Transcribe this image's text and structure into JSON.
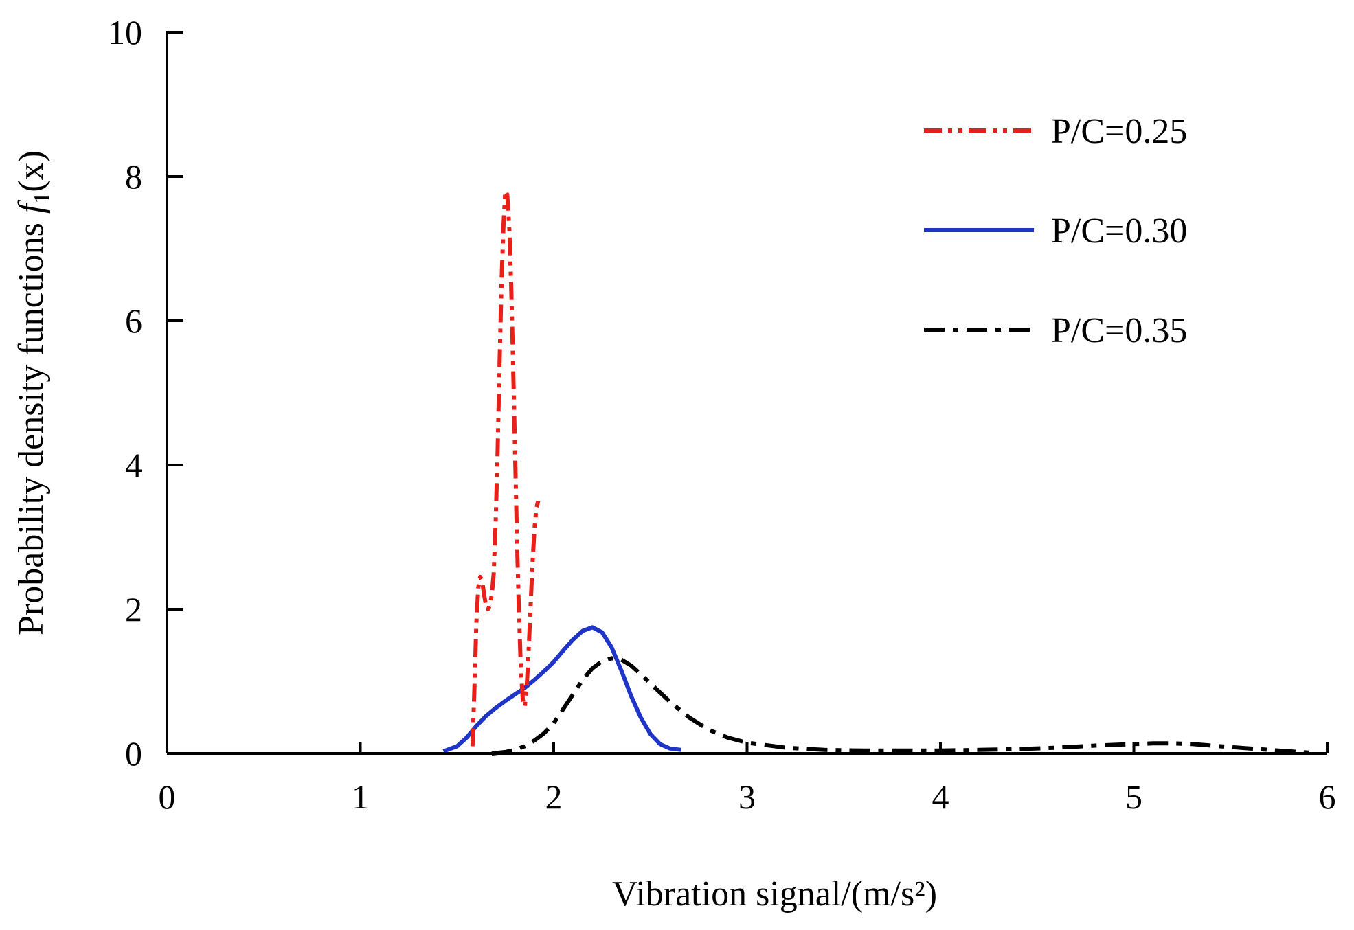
{
  "chart_data": {
    "type": "line",
    "title": "",
    "xlabel": "Vibration signal/(m/s²)",
    "ylabel_prefix": "Probability density functions ",
    "ylabel_symbol": "f",
    "ylabel_subscript": "1",
    "ylabel_suffix": "(x)",
    "xlim": [
      0,
      6
    ],
    "ylim": [
      0,
      10
    ],
    "xticks": [
      0,
      1,
      2,
      3,
      4,
      5,
      6
    ],
    "yticks": [
      0,
      2,
      4,
      6,
      8,
      10
    ],
    "grid": false,
    "legend_position": "top-right",
    "series": [
      {
        "name": "P/C=0.25",
        "color": "#e8201a",
        "dash": "dash-dot-dot",
        "x": [
          1.58,
          1.59,
          1.6,
          1.61,
          1.62,
          1.63,
          1.64,
          1.65,
          1.66,
          1.67,
          1.68,
          1.69,
          1.7,
          1.71,
          1.72,
          1.73,
          1.74,
          1.75,
          1.76,
          1.77,
          1.78,
          1.79,
          1.8,
          1.81,
          1.82,
          1.83,
          1.84,
          1.85,
          1.86,
          1.87,
          1.88,
          1.89,
          1.9,
          1.91,
          1.92
        ],
        "y": [
          0.1,
          0.9,
          1.8,
          2.3,
          2.45,
          2.4,
          2.2,
          2.05,
          2.0,
          2.05,
          2.2,
          2.5,
          3.2,
          4.2,
          5.4,
          6.5,
          7.3,
          7.8,
          7.75,
          7.3,
          6.5,
          5.4,
          4.2,
          3.0,
          2.0,
          1.2,
          0.75,
          0.65,
          0.9,
          1.4,
          2.0,
          2.6,
          3.1,
          3.4,
          3.5
        ]
      },
      {
        "name": "P/C=0.30",
        "color": "#1f35c8",
        "dash": "solid",
        "x": [
          1.43,
          1.5,
          1.55,
          1.6,
          1.65,
          1.7,
          1.75,
          1.8,
          1.85,
          1.9,
          1.95,
          2.0,
          2.05,
          2.1,
          2.15,
          2.2,
          2.25,
          2.3,
          2.35,
          2.4,
          2.45,
          2.5,
          2.55,
          2.6,
          2.66
        ],
        "y": [
          0.03,
          0.1,
          0.22,
          0.38,
          0.52,
          0.63,
          0.73,
          0.82,
          0.91,
          1.02,
          1.14,
          1.27,
          1.43,
          1.58,
          1.7,
          1.75,
          1.68,
          1.47,
          1.15,
          0.8,
          0.5,
          0.27,
          0.13,
          0.07,
          0.05
        ]
      },
      {
        "name": "P/C=0.35",
        "color": "#000000",
        "dash": "dash-dot",
        "x": [
          1.68,
          1.75,
          1.8,
          1.85,
          1.9,
          1.95,
          2.0,
          2.05,
          2.1,
          2.15,
          2.2,
          2.25,
          2.3,
          2.35,
          2.4,
          2.45,
          2.5,
          2.6,
          2.7,
          2.8,
          2.9,
          3.0,
          3.2,
          3.4,
          3.6,
          3.8,
          4.0,
          4.2,
          4.4,
          4.6,
          4.8,
          5.0,
          5.1,
          5.2,
          5.3,
          5.4,
          5.6,
          5.8,
          5.92
        ],
        "y": [
          0.0,
          0.02,
          0.05,
          0.1,
          0.18,
          0.28,
          0.42,
          0.62,
          0.82,
          1.02,
          1.18,
          1.28,
          1.32,
          1.3,
          1.22,
          1.1,
          0.97,
          0.72,
          0.5,
          0.33,
          0.22,
          0.15,
          0.08,
          0.05,
          0.04,
          0.04,
          0.04,
          0.05,
          0.06,
          0.08,
          0.11,
          0.13,
          0.14,
          0.14,
          0.13,
          0.11,
          0.07,
          0.03,
          0.01
        ]
      }
    ]
  }
}
